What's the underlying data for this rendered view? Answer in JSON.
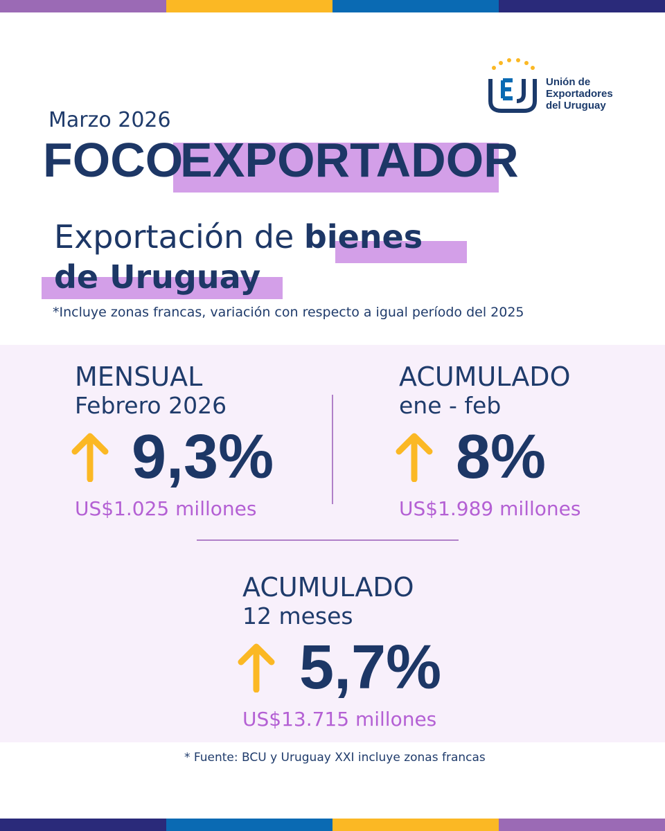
{
  "brand": {
    "stripe_top": [
      "#9b6ab5",
      "#fbb824",
      "#0a6ab3",
      "#2a2a7a"
    ],
    "stripe_bottom": [
      "#2a2a7a",
      "#0a6ab3",
      "#fbb824",
      "#9b6ab5"
    ],
    "navy": "#1d3766",
    "highlight": "#d39fe8",
    "amount_color": "#b460d4",
    "arrow_color": "#fbb824",
    "panel_bg": "#f8f0fb"
  },
  "logo": {
    "icon": "uex-logo-icon",
    "line1": "Unión de",
    "line2": "Exportadores",
    "line3": "del Uruguay"
  },
  "header": {
    "month": "Marzo 2026",
    "title_part1": "FOCO",
    "title_part2": "EXPORTADOR"
  },
  "subtitle": {
    "part1": "Exportación de",
    "part2": "bienes",
    "part3": "de Uruguay",
    "note": "*Incluye zonas francas, variación con respecto a igual período del 2025"
  },
  "stats": {
    "monthly": {
      "label": "MENSUAL",
      "period": "Febrero 2026",
      "percent": "9,3%",
      "amount": "US$1.025 millones",
      "arrow": "arrow-up-icon"
    },
    "ytd": {
      "label": "ACUMULADO",
      "period": "ene - feb",
      "percent": "8%",
      "amount": "US$1.989 millones",
      "arrow": "arrow-up-icon"
    },
    "twelve_months": {
      "label": "ACUMULADO",
      "period": "12 meses",
      "percent": "5,7%",
      "amount": "US$13.715 millones",
      "arrow": "arrow-up-icon"
    }
  },
  "footer": {
    "source": "*  Fuente:  BCU y Uruguay XXI  incluye zonas francas"
  }
}
